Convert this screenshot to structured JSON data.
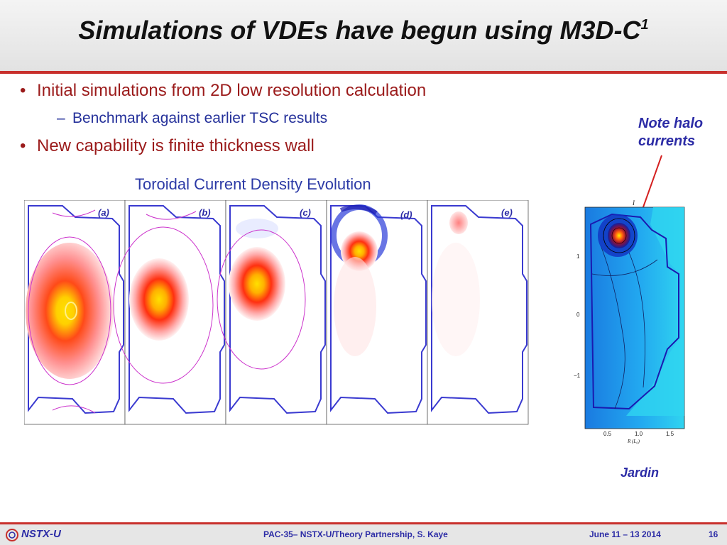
{
  "slide": {
    "title": "Simulations of VDEs have begun using M3D-C",
    "title_superscript": "1",
    "bullets": [
      {
        "text": "Initial simulations from 2D low resolution calculation",
        "sub": [
          "Benchmark against earlier TSC results"
        ]
      },
      {
        "text": "New capability is finite thickness wall",
        "sub": []
      }
    ],
    "figure_caption": "Toroidal Current Density Evolution",
    "panel_labels": [
      "(a)",
      "(b)",
      "(c)",
      "(d)",
      "(e)"
    ],
    "note_line1": "Note halo",
    "note_line2": "currents",
    "jardin_label": "Jardin",
    "jardin_plot": {
      "top_label": "I",
      "y_ticks": [
        "1",
        "0",
        "−1"
      ],
      "x_ticks": [
        "0.5",
        "1.0",
        "1.5"
      ],
      "x_axis_label": "R (L₀)"
    }
  },
  "footer": {
    "logo_text": "NSTX-U",
    "center_text": "PAC-35– NSTX-U/Theory Partnership, S. Kaye",
    "date": "June 11 – 13 2014",
    "page_number": "16"
  },
  "colors": {
    "accent_red": "#c8302c",
    "bullet_red": "#9b1b1b",
    "blue_text": "#2c2ca6"
  }
}
